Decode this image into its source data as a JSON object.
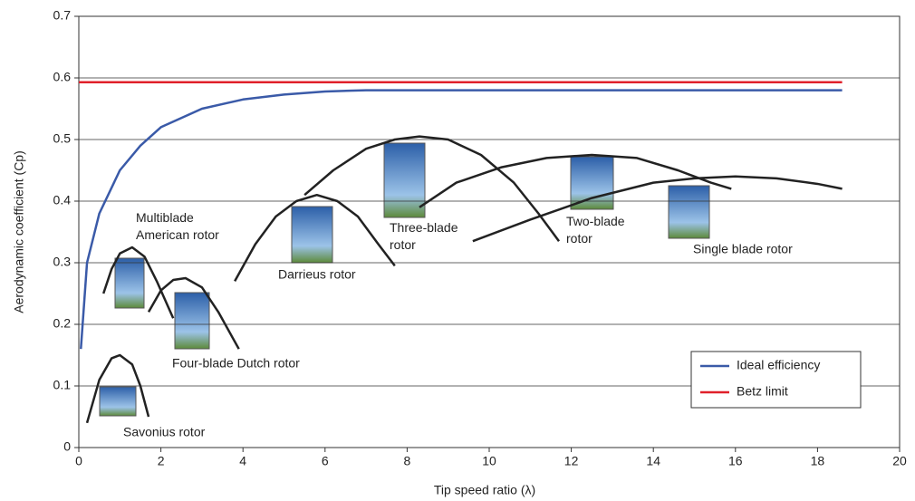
{
  "chart_data": {
    "type": "line",
    "x_label": "Tip speed ratio (λ)",
    "y_label": "Aerodynamic coefficient (Cp)",
    "xlim": [
      0,
      20
    ],
    "xticks": [
      0,
      2,
      4,
      6,
      8,
      10,
      12,
      14,
      16,
      18,
      20
    ],
    "ylim": [
      0,
      0.7
    ],
    "yticks": [
      0,
      0.1,
      0.2,
      0.3,
      0.4,
      0.5,
      0.6,
      0.7
    ],
    "grid": true,
    "legend": "lower right",
    "series": [
      {
        "name": "Ideal efficiency",
        "color": "#3a5aa8",
        "in_legend": true,
        "x": [
          0.05,
          0.2,
          0.5,
          1,
          1.5,
          2,
          3,
          4,
          5,
          6,
          7,
          10,
          18.6
        ],
        "values": [
          0.16,
          0.3,
          0.38,
          0.45,
          0.49,
          0.52,
          0.55,
          0.565,
          0.573,
          0.578,
          0.58,
          0.58,
          0.58
        ]
      },
      {
        "name": "Betz limit",
        "color": "#e0202a",
        "in_legend": true,
        "x": [
          0,
          18.6
        ],
        "values": [
          0.593,
          0.593
        ]
      },
      {
        "name": "Savonius rotor",
        "color": "#222222",
        "in_legend": false,
        "x": [
          0.2,
          0.5,
          0.8,
          1.0,
          1.3,
          1.5,
          1.7
        ],
        "values": [
          0.04,
          0.11,
          0.145,
          0.15,
          0.135,
          0.1,
          0.05
        ]
      },
      {
        "name": "Multiblade\nAmerican rotor",
        "color": "#222222",
        "in_legend": false,
        "x": [
          0.6,
          0.8,
          1.0,
          1.3,
          1.6,
          1.9,
          2.3
        ],
        "values": [
          0.25,
          0.29,
          0.315,
          0.325,
          0.31,
          0.27,
          0.21
        ]
      },
      {
        "name": "Four-blade Dutch rotor",
        "color": "#222222",
        "in_legend": false,
        "x": [
          1.7,
          2.0,
          2.3,
          2.6,
          3.0,
          3.4,
          3.9
        ],
        "values": [
          0.22,
          0.255,
          0.272,
          0.275,
          0.26,
          0.22,
          0.16
        ]
      },
      {
        "name": "Darrieus rotor",
        "color": "#222222",
        "in_legend": false,
        "x": [
          3.8,
          4.3,
          4.8,
          5.3,
          5.8,
          6.3,
          6.8,
          7.3,
          7.7
        ],
        "values": [
          0.27,
          0.33,
          0.375,
          0.4,
          0.41,
          0.4,
          0.375,
          0.33,
          0.295
        ]
      },
      {
        "name": "Three-blade\nrotor",
        "color": "#222222",
        "in_legend": false,
        "x": [
          5.5,
          6.2,
          7.0,
          7.7,
          8.3,
          9.0,
          9.8,
          10.6,
          11.2,
          11.7
        ],
        "values": [
          0.41,
          0.45,
          0.485,
          0.5,
          0.505,
          0.5,
          0.475,
          0.43,
          0.38,
          0.335
        ]
      },
      {
        "name": "Two-blade\nrotor",
        "color": "#222222",
        "in_legend": false,
        "x": [
          8.3,
          9.2,
          10.3,
          11.4,
          12.5,
          13.6,
          14.6,
          15.4,
          15.9
        ],
        "values": [
          0.39,
          0.43,
          0.455,
          0.47,
          0.475,
          0.47,
          0.45,
          0.43,
          0.42
        ]
      },
      {
        "name": "Single blade rotor",
        "color": "#222222",
        "in_legend": false,
        "x": [
          9.6,
          11,
          12.5,
          14,
          15,
          16,
          17,
          18,
          18.6
        ],
        "values": [
          0.335,
          0.37,
          0.405,
          0.43,
          0.437,
          0.44,
          0.437,
          0.428,
          0.42
        ]
      }
    ]
  }
}
